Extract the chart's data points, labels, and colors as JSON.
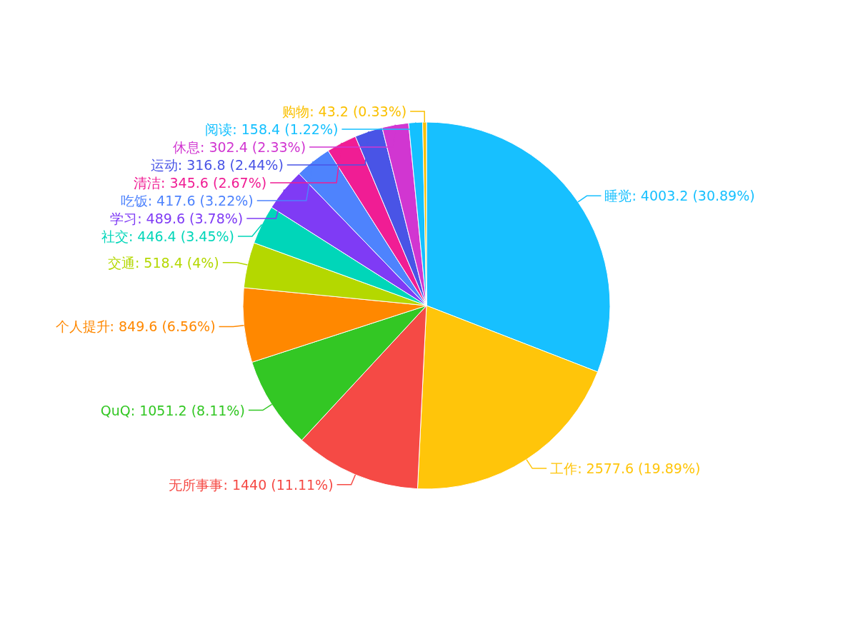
{
  "chart_data": {
    "type": "pie",
    "categories": [
      "睡觉",
      "工作",
      "无所事事",
      "QuQ",
      "个人提升",
      "交通",
      "社交",
      "学习",
      "吃饭",
      "清洁",
      "运动",
      "休息",
      "阅读",
      "购物"
    ],
    "values": [
      4003.2,
      2577.6,
      1440,
      1051.2,
      849.6,
      518.4,
      446.4,
      489.6,
      417.6,
      345.6,
      316.8,
      302.4,
      158.4,
      43.2
    ],
    "value_labels": [
      "4003.2 (30.89%)",
      "2577.6 (19.89%)",
      "1440 (11.11%)",
      "1051.2 (8.11%)",
      "849.6 (6.56%)",
      "518.4 (4%)",
      "446.4 (3.45%)",
      "489.6 (3.78%)",
      "417.6 (3.22%)",
      "345.6 (2.67%)",
      "316.8 (2.44%)",
      "302.4 (2.33%)",
      "158.4 (1.22%)",
      "43.2 (0.33%)"
    ],
    "colors": [
      "#17c0ff",
      "#ffc50a",
      "#f54a45",
      "#33c724",
      "#ff8800",
      "#b4d800",
      "#00d6b9",
      "#7f3bf5",
      "#4e83fd",
      "#f01d94",
      "#4954e6",
      "#d136d1",
      "#14c0ff",
      "#fac000"
    ],
    "legend": false
  }
}
